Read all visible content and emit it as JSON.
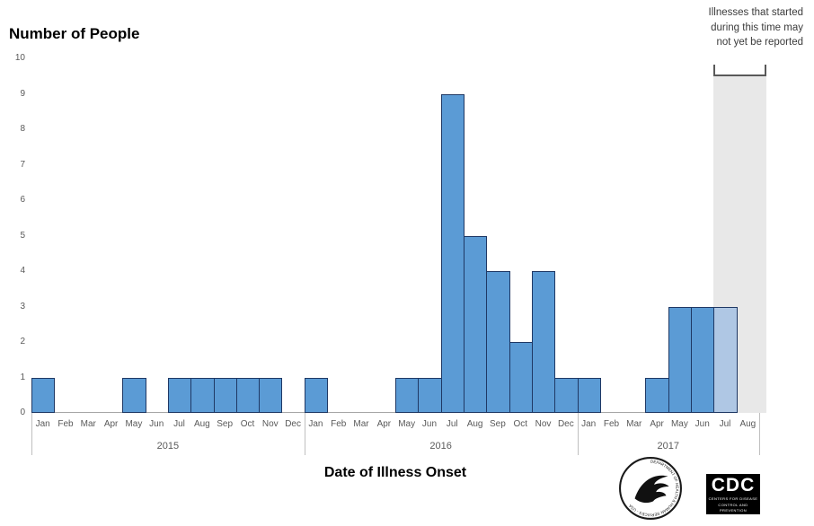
{
  "title": "Number of People",
  "x_axis_title": "Date of Illness Onset",
  "annotation": "Illnesses that started\nduring this time may\nnot yet be reported",
  "chart_data": {
    "type": "bar",
    "title": "Number of People",
    "xlabel": "Date of Illness Onset",
    "ylabel": "Number of People",
    "ylim": [
      0,
      10
    ],
    "yticks": [
      0,
      1,
      2,
      3,
      4,
      5,
      6,
      7,
      8,
      9,
      10
    ],
    "gridlines": false,
    "legend": "none",
    "categories": [
      "Jan",
      "Feb",
      "Mar",
      "Apr",
      "May",
      "Jun",
      "Jul",
      "Aug",
      "Sep",
      "Oct",
      "Nov",
      "Dec",
      "Jan",
      "Feb",
      "Mar",
      "Apr",
      "May",
      "Jun",
      "Jul",
      "Aug",
      "Sep",
      "Oct",
      "Nov",
      "Dec",
      "Jan",
      "Feb",
      "Mar",
      "Apr",
      "May",
      "Jun",
      "Jul",
      "Aug"
    ],
    "values": [
      1,
      0,
      0,
      0,
      1,
      0,
      1,
      1,
      1,
      1,
      1,
      0,
      1,
      0,
      0,
      0,
      1,
      1,
      9,
      5,
      4,
      2,
      4,
      1,
      1,
      0,
      0,
      1,
      3,
      3,
      3,
      0
    ],
    "year_groups": [
      {
        "label": "2015",
        "start": 0,
        "count": 12
      },
      {
        "label": "2016",
        "start": 12,
        "count": 12
      },
      {
        "label": "2017",
        "start": 24,
        "count": 8
      }
    ],
    "partial_indices": [
      30
    ],
    "shaded_region": {
      "start_index": 30,
      "count": 2,
      "top_value": 9.5,
      "note": "Illnesses that started during this time may not yet be reported"
    },
    "colors": {
      "bar_fill": "#5B9BD5",
      "bar_border": "#1F3864",
      "partial_bar_fill": "#AFC7E4",
      "shade_fill": "#E8E8E8",
      "axis_line": "#A6A6A6",
      "tick_label": "#595959"
    }
  },
  "logos": {
    "hhs_seal_text": "DEPARTMENT OF HEALTH & HUMAN SERVICES - USA",
    "cdc_text": "CDC",
    "cdc_sub1": "CENTERS FOR DISEASE",
    "cdc_sub2": "CONTROL AND PREVENTION"
  }
}
